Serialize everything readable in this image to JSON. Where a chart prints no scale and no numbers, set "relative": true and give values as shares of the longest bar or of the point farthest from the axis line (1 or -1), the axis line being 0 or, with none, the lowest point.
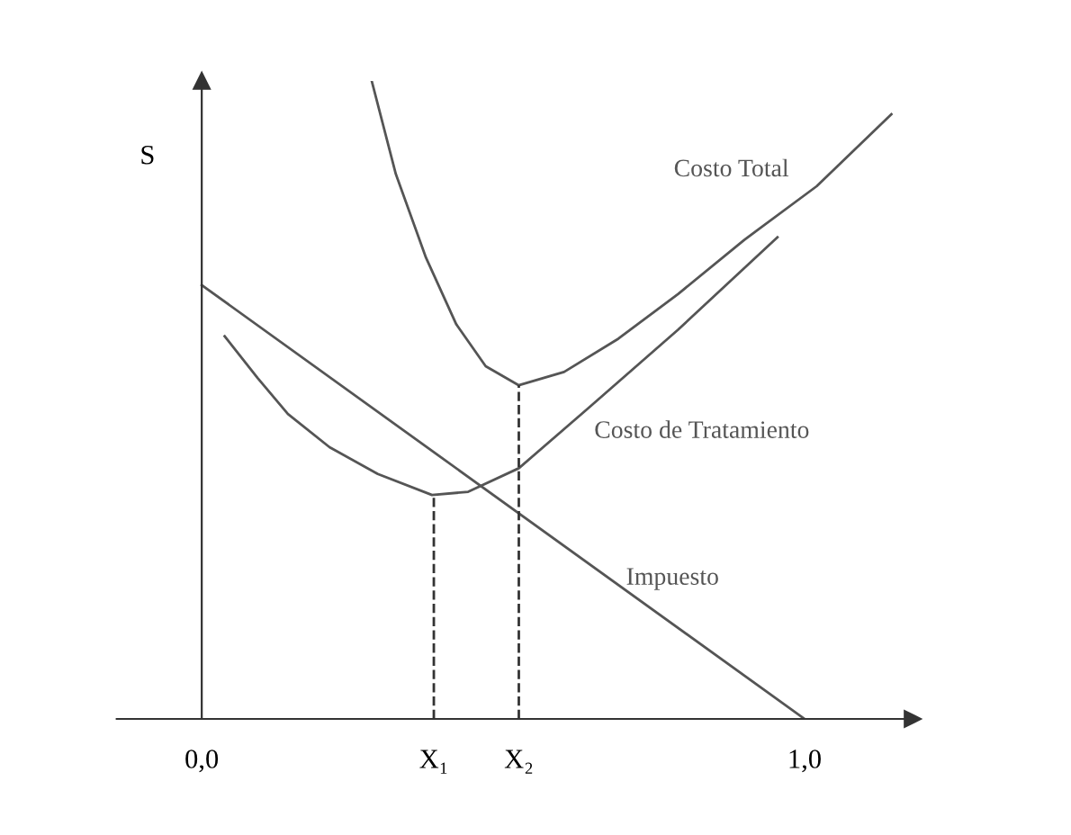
{
  "chart_data": {
    "type": "line",
    "relative": true,
    "ylabel": "S",
    "xlim": [
      -0.141,
      1.179
    ],
    "xticks": [
      {
        "value": 0,
        "label": "0,0"
      },
      {
        "value": 0.385,
        "label": "X₁"
      },
      {
        "value": 0.526,
        "label": "X₂"
      },
      {
        "value": 1.0,
        "label": "1,0"
      }
    ],
    "legend": false,
    "marker": "none",
    "line_style": "solid",
    "series": [
      {
        "name": "Costo Total",
        "color": "#555555",
        "x": [
          0.282,
          0.322,
          0.372,
          0.422,
          0.471,
          0.526,
          0.601,
          0.691,
          0.79,
          0.9,
          1.02,
          1.144
        ],
        "values": [
          1.0,
          0.854,
          0.723,
          0.619,
          0.553,
          0.523,
          0.544,
          0.596,
          0.666,
          0.751,
          0.835,
          0.948
        ]
      },
      {
        "name": "Costo de Tratamiento",
        "color": "#555555",
        "x": [
          0.038,
          0.093,
          0.143,
          0.212,
          0.292,
          0.382,
          0.442,
          0.526,
          0.641,
          0.79,
          0.955
        ],
        "values": [
          0.6,
          0.534,
          0.478,
          0.426,
          0.384,
          0.351,
          0.356,
          0.393,
          0.487,
          0.61,
          0.755
        ]
      },
      {
        "name": "Impuesto",
        "color": "#555555",
        "x": [
          0,
          1.0
        ],
        "values": [
          0.68,
          0
        ]
      },
      {
        "color": "#333333",
        "line_style": "dashed",
        "x": [
          0.385,
          0.385
        ],
        "values": [
          0,
          0.351
        ]
      },
      {
        "color": "#333333",
        "line_style": "dashed",
        "x": [
          0.526,
          0.526
        ],
        "values": [
          0,
          0.523
        ]
      }
    ]
  }
}
